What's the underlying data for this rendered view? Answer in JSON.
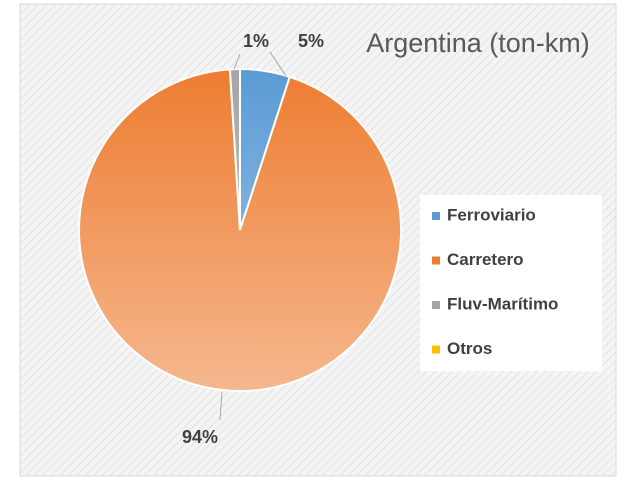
{
  "chart_data": {
    "type": "pie",
    "title": "Argentina (ton-km)",
    "categories": [
      "Ferroviario",
      "Carretero",
      "Fluv-Marítimo",
      "Otros"
    ],
    "values": [
      5,
      94,
      1,
      0
    ],
    "value_labels": [
      "5%",
      "94%",
      "1%",
      null
    ],
    "colors": [
      "#5b9bd5",
      "#ed7d31",
      "#a5a5a5",
      "#ffc000"
    ],
    "legend": "right"
  }
}
